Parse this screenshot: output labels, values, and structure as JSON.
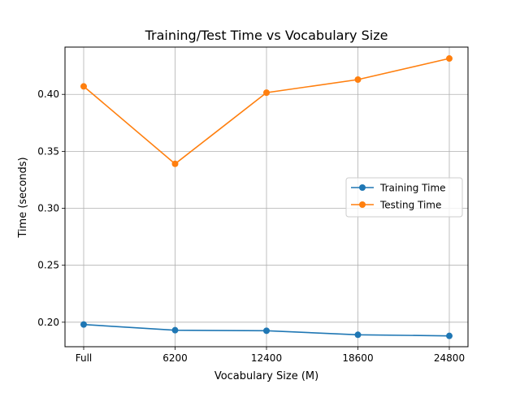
{
  "chart_data": {
    "type": "line",
    "title": "Training/Test Time vs Vocabulary Size",
    "xlabel": "Vocabulary Size (M)",
    "ylabel": "Time (seconds)",
    "categories": [
      "Full",
      "6200",
      "12400",
      "18600",
      "24800"
    ],
    "yticks": [
      0.2,
      0.25,
      0.3,
      0.35,
      0.4
    ],
    "ytick_labels": [
      "0.20",
      "0.25",
      "0.30",
      "0.35",
      "0.40"
    ],
    "ylim": [
      0.1785,
      0.4415
    ],
    "grid": true,
    "legend_position": "center-right",
    "series": [
      {
        "name": "Training Time",
        "color": "#1f77b4",
        "values": [
          0.198,
          0.193,
          0.1925,
          0.189,
          0.188
        ]
      },
      {
        "name": "Testing Time",
        "color": "#ff7f0e",
        "values": [
          0.407,
          0.339,
          0.4015,
          0.413,
          0.4315
        ]
      }
    ]
  }
}
